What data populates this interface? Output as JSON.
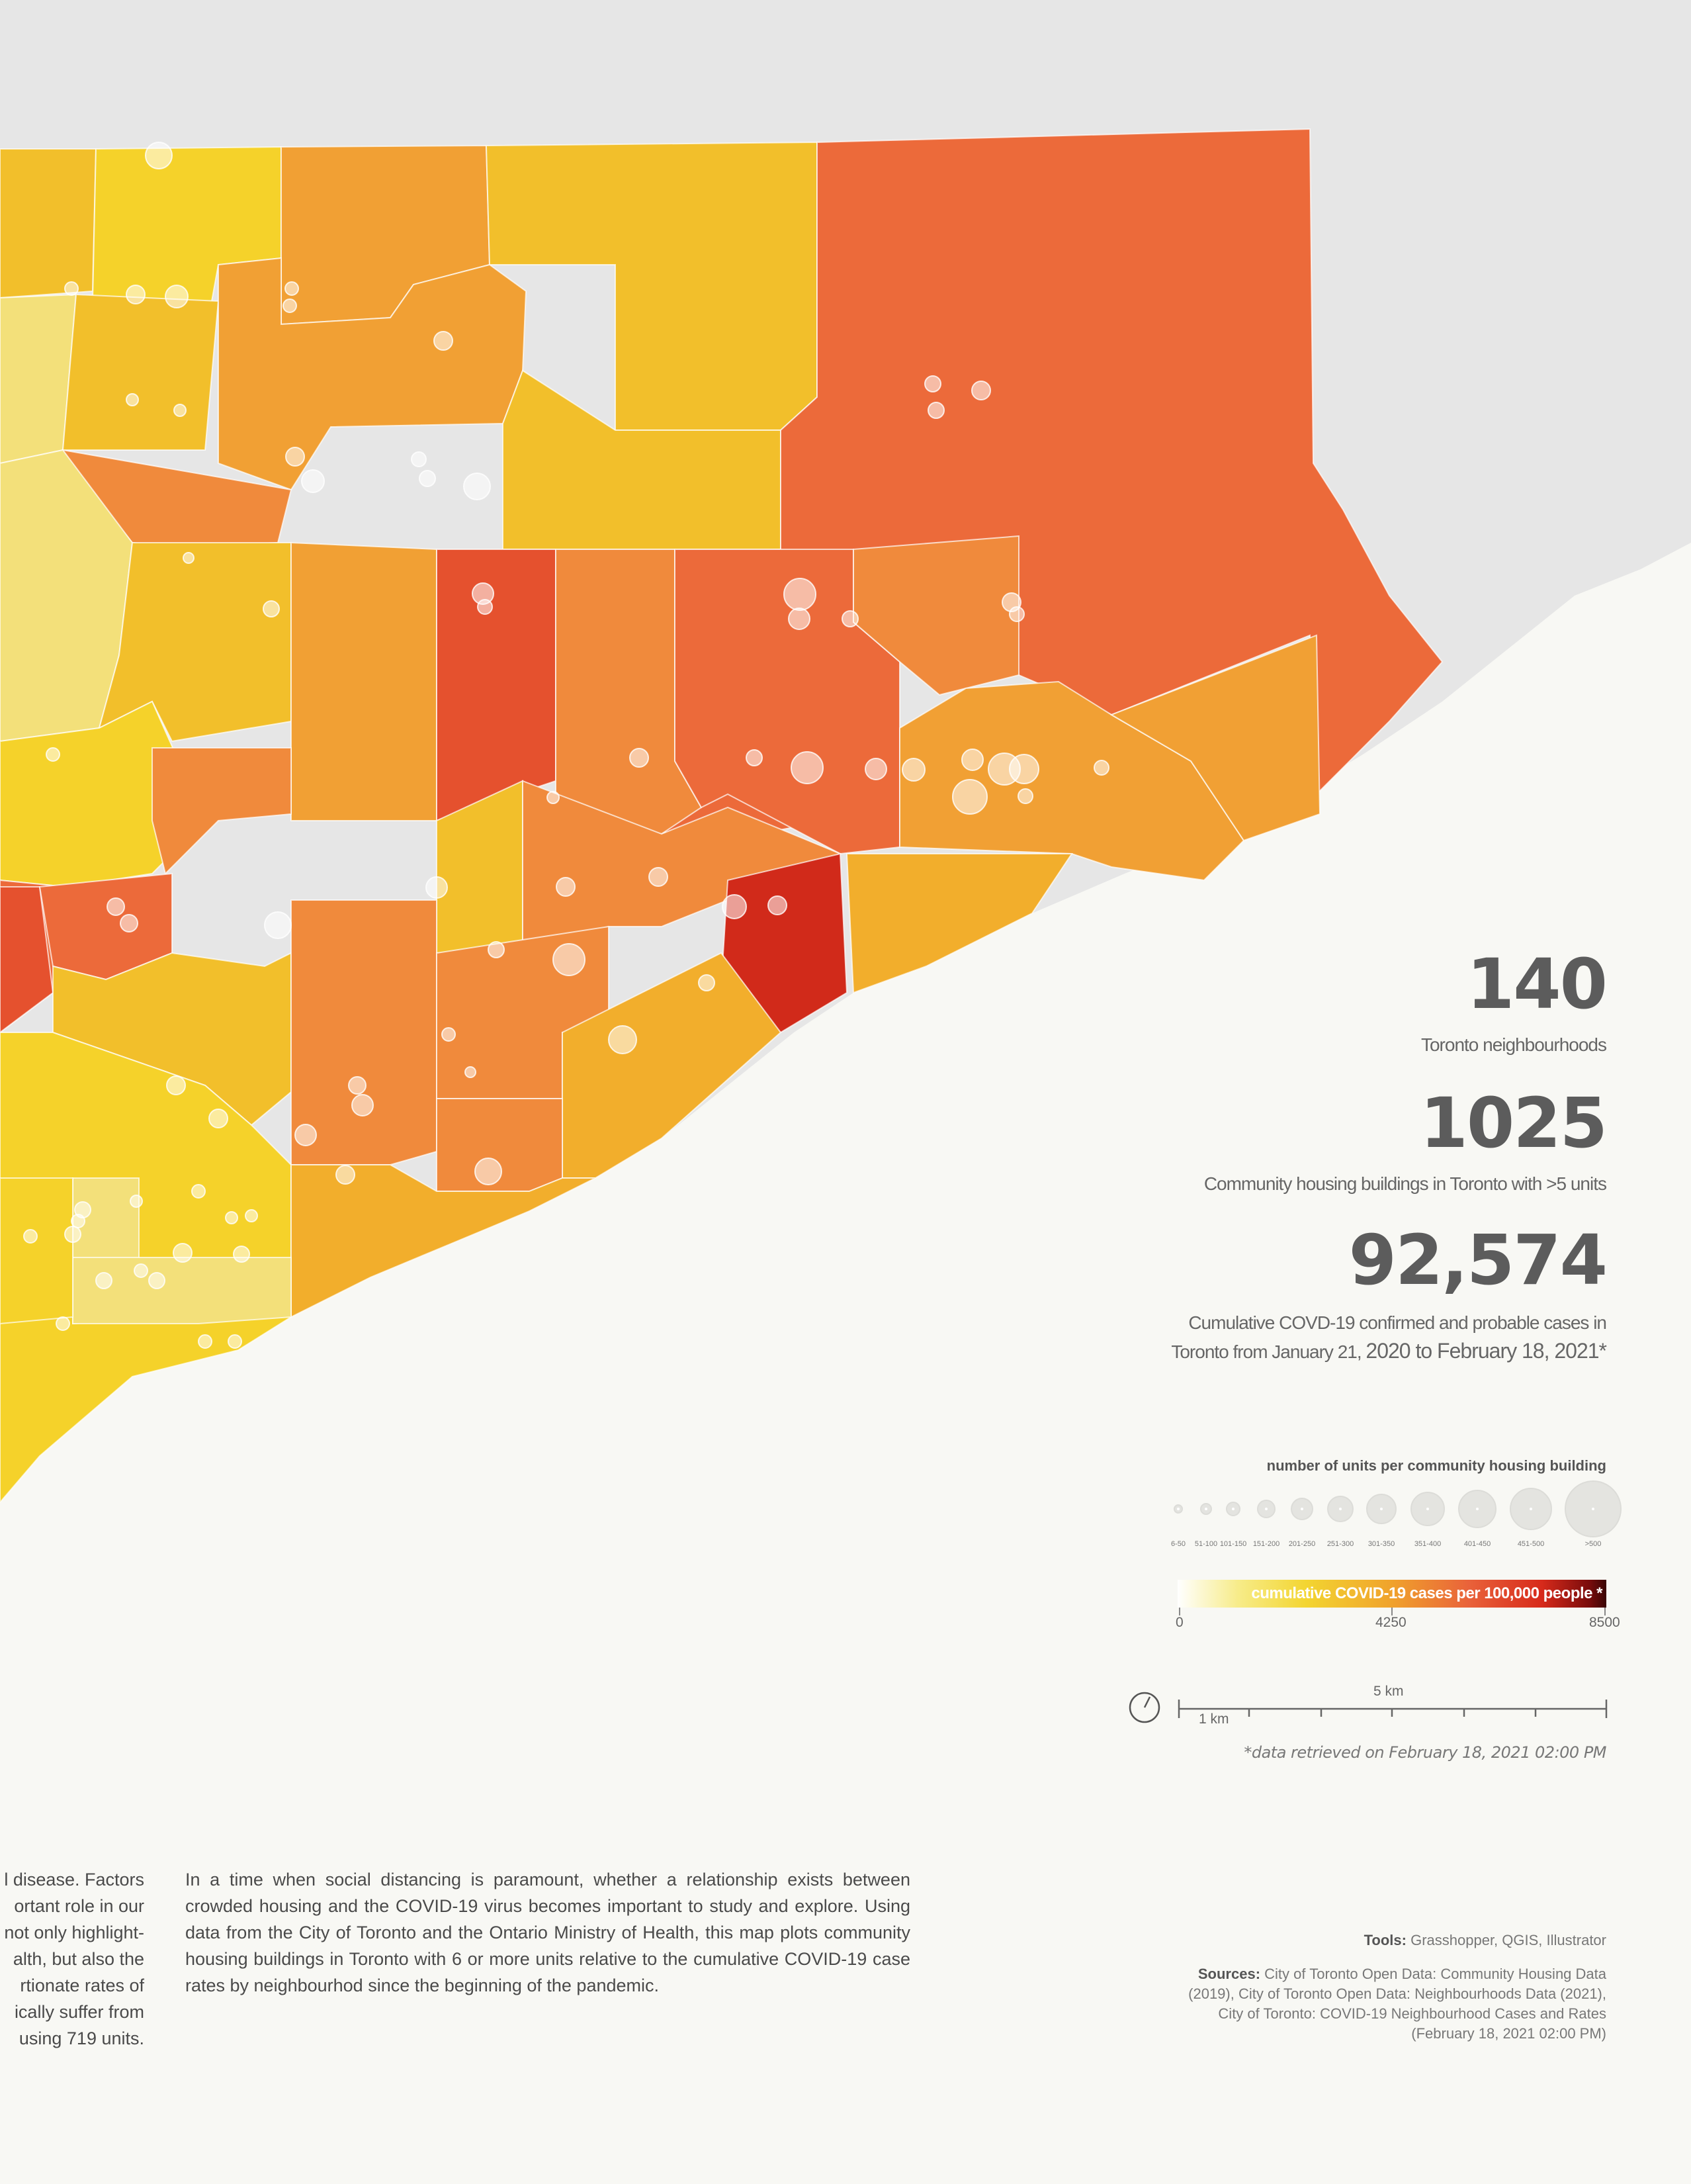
{
  "map": {
    "colors": {
      "land_bg": "#e6e6e6",
      "lake": "#f8f8f4",
      "c1": "#f3e07a",
      "c2": "#f5d22a",
      "c3": "#f2bf2b",
      "c4": "#f2ae2c",
      "c5": "#f1a034",
      "c6": "#f08a3c",
      "c7": "#ec6a3a",
      "c8": "#e5512e",
      "c9": "#d12a1a",
      "circle": "#ffffff"
    }
  },
  "stats": [
    {
      "number": "140",
      "label": "Toronto neighbourhoods"
    },
    {
      "number": "1025",
      "label": "Community housing buildings in Toronto with >5 units"
    },
    {
      "number": "92,574",
      "label_line1": "Cumulative COVD-19 confirmed and probable cases in",
      "label_line2_a": "Toronto from January 21, ",
      "label_line2_b": "2020 to February 18, 2021*"
    }
  ],
  "legend_units": {
    "title": "number of units per community housing building",
    "items": [
      "6-50",
      "51-100",
      "101-150",
      "151-200",
      "201-250",
      "251-300",
      "301-350",
      "351-400",
      "401-450",
      "451-500",
      ">500"
    ]
  },
  "colorbar": {
    "label": "cumulative COVID-19 cases per 100,000 people *",
    "min": "0",
    "mid": "4250",
    "max": "8500"
  },
  "scale": {
    "major": "5 km",
    "minor": "1 km"
  },
  "retrieved": "*data retrieved on February 18, 2021 02:00 PM",
  "body_left": [
    "l disease. Factors",
    "ortant role in our",
    "not only highlight-",
    "alth, but also the",
    "rtionate rates of",
    "ically suffer from",
    "using 719 units."
  ],
  "body_right": "In a time when social distancing is paramount, whether a relationship exists between crowded housing and the COVID-19 virus becomes important to study and explore. Using data from the City of Toronto and the Ontario Ministry of Health, this map plots community housing buildings in Toronto with 6 or more units relative to the cumulative COVID-19 case rates by neighbourhod since the beginning of the pandemic.",
  "tools": {
    "label": "Tools:",
    "value": "Grasshopper, QGIS, Illustrator"
  },
  "sources": {
    "label": "Sources:",
    "line1": "City of Toronto Open Data: Community Housing Data",
    "line2": "(2019), City of Toronto Open Data: Neighbourhoods Data (2021),",
    "line3": "City of Toronto: COVID-19 Neighbourhood Cases and Rates",
    "line4": "(February 18, 2021 02:00 PM)"
  }
}
